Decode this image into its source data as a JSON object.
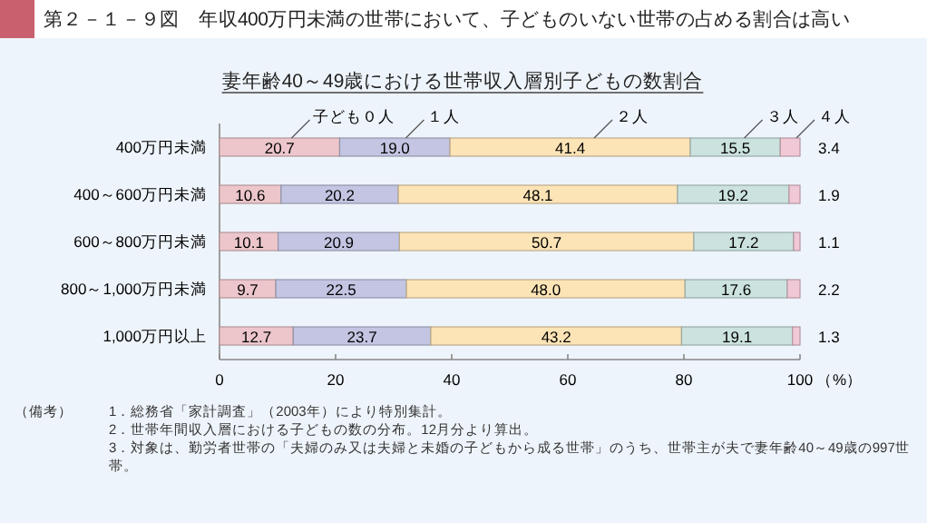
{
  "chart_data": {
    "type": "bar",
    "orientation": "horizontal",
    "stacked": true,
    "grid": false,
    "title": "第２－１－９図　年収400万円未満の世帯において、子どものいない世帯の占める割合は高い",
    "subtitle": "妻年齢40～49歳における世帯収入層別子どもの数割合",
    "xlabel": "（%）",
    "categories": [
      "400万円未満",
      "400～600万円未満",
      "600～800万円未満",
      "800～1,000万円未満",
      "1,000万円以上"
    ],
    "xlim": [
      0,
      100
    ],
    "xticks": [
      0,
      20,
      40,
      60,
      80,
      100
    ],
    "series": [
      {
        "name": "子ども０人",
        "color": "#ecc6ca",
        "values": [
          20.7,
          10.6,
          10.1,
          9.7,
          12.7
        ],
        "value_labels": [
          "20.7",
          "10.6",
          "10.1",
          "9.7",
          "12.7"
        ]
      },
      {
        "name": "１人",
        "color": "#c3c5e2",
        "values": [
          19.0,
          20.2,
          20.9,
          22.5,
          23.7
        ],
        "value_labels": [
          "19.0",
          "20.2",
          "20.9",
          "22.5",
          "23.7"
        ]
      },
      {
        "name": "２人",
        "color": "#fde4b6",
        "values": [
          41.4,
          48.1,
          50.7,
          48.0,
          43.2
        ],
        "value_labels": [
          "41.4",
          "48.1",
          "50.7",
          "48.0",
          "43.2"
        ]
      },
      {
        "name": "３人",
        "color": "#cbe2de",
        "values": [
          15.5,
          19.2,
          17.2,
          17.6,
          19.1
        ],
        "value_labels": [
          "15.5",
          "19.2",
          "17.2",
          "17.6",
          "19.1"
        ]
      },
      {
        "name": "４人",
        "color": "#f1c8d6",
        "values": [
          3.4,
          1.9,
          1.1,
          2.2,
          1.3
        ],
        "value_labels": [
          "3.4",
          "1.9",
          "1.1",
          "2.2",
          "1.3"
        ]
      }
    ],
    "annotations": [
      "（備考）",
      "1．総務省「家計調査」（2003年）により特別集計。",
      "2．世帯年間収入層における子どもの数の分布。12月分より算出。",
      "3．対象は、勤労者世帯の「夫婦のみ又は夫婦と未婚の子どもから成る世帯」のうち、世帯主が夫で妻年齢40～49歳の997世帯。"
    ]
  }
}
